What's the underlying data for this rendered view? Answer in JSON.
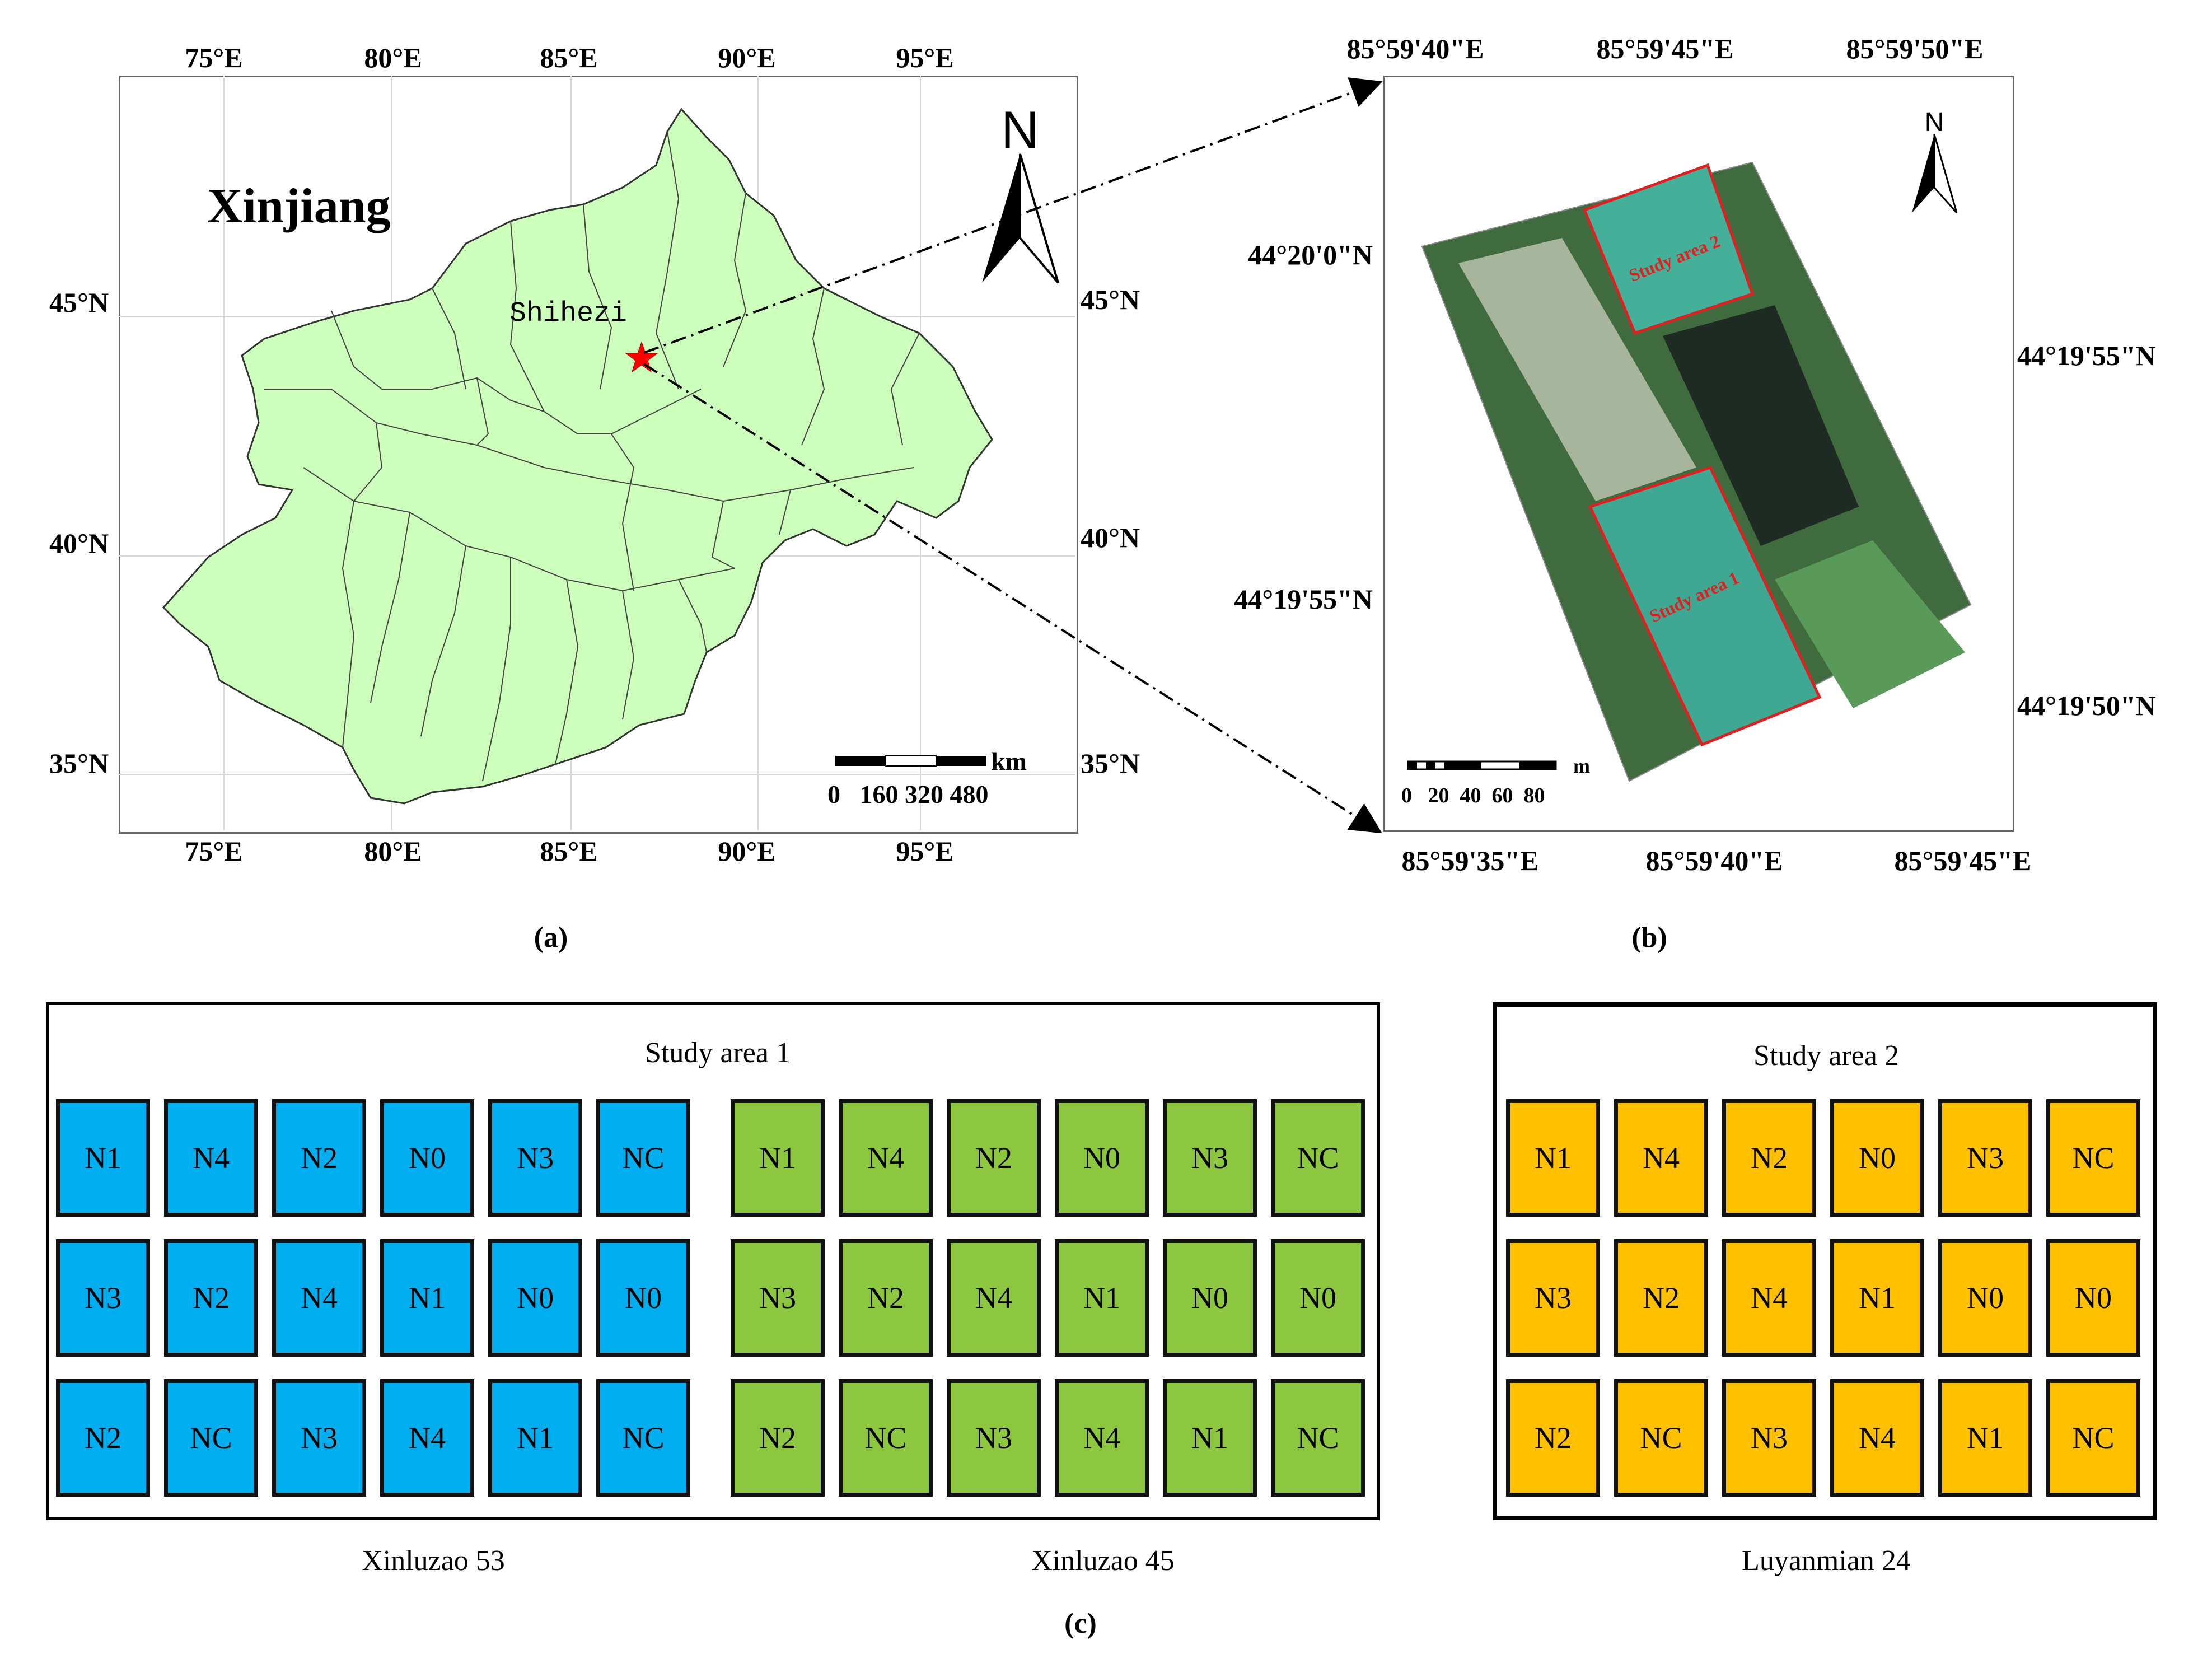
{
  "colors": {
    "land_fill": "#ccffbb",
    "marker": "#ff0000",
    "group_colors": [
      "#00aeef",
      "#8dc63f",
      "#ffc000"
    ]
  },
  "panel_a": {
    "caption": "(a)",
    "region_label": "Xinjiang",
    "city_label": "Shihezi",
    "north_label": "N",
    "lon_top": [
      "75°E",
      "80°E",
      "85°E",
      "90°E",
      "95°E"
    ],
    "lon_bottom": [
      "75°E",
      "80°E",
      "85°E",
      "90°E",
      "95°E"
    ],
    "lat_left": [
      "45°N",
      "40°N",
      "35°N"
    ],
    "lat_right": [
      "45°N",
      "40°N",
      "35°N"
    ],
    "scale_unit": "km",
    "scale_ticks": "0   160 320 480"
  },
  "panel_b": {
    "caption": "(b)",
    "north_label": "N",
    "lon_top": [
      "85°59'40\"E",
      "85°59'45\"E",
      "85°59'50\"E"
    ],
    "lon_bottom": [
      "85°59'35\"E",
      "85°59'40\"E",
      "85°59'45\"E"
    ],
    "lat_left": [
      "44°20'0\"N",
      "44°19'55\"N"
    ],
    "lat_right": [
      "44°19'55\"N",
      "44°19'50\"N"
    ],
    "area_labels": [
      "Study area 2",
      "Study area 1"
    ],
    "scale_unit": "m",
    "scale_ticks": "0   20  40  60  80"
  },
  "panel_c": {
    "caption": "(c)",
    "area1_title": "Study area 1",
    "area2_title": "Study area 2",
    "varieties": [
      "Xinluzao 53",
      "Xinluzao 45",
      "Luyanmian 24"
    ],
    "layout_rows": [
      [
        "N1",
        "N4",
        "N2",
        "N0",
        "N3",
        "NC"
      ],
      [
        "N3",
        "N2",
        "N4",
        "N1",
        "N0",
        "N0"
      ],
      [
        "N2",
        "NC",
        "N3",
        "N4",
        "N1",
        "NC"
      ]
    ]
  }
}
